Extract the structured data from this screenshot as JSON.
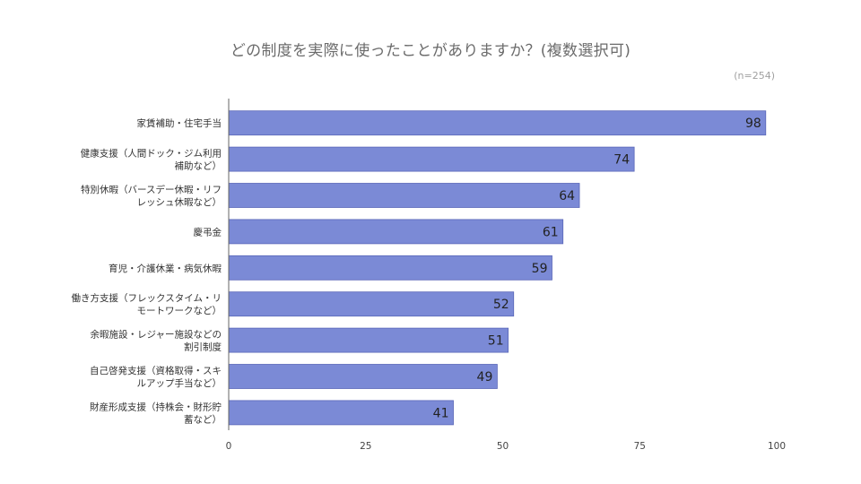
{
  "chart_data": {
    "type": "bar",
    "orientation": "horizontal",
    "title": "どの制度を実際に使ったことがありますか？(複数選択可)",
    "note": "(n=254)",
    "categories": [
      [
        "家賃補助・住宅手当"
      ],
      [
        "健康支援（人間ドック・ジム利用",
        "補助など）"
      ],
      [
        "特別休暇（バースデー休暇・リフ",
        "レッシュ休暇など）"
      ],
      [
        "慶弔金"
      ],
      [
        "育児・介護休業・病気休暇"
      ],
      [
        "働き方支援（フレックスタイム・リ",
        "モートワークなど）"
      ],
      [
        "余暇施設・レジャー施設などの",
        "割引制度"
      ],
      [
        "自己啓発支援（資格取得・スキ",
        "ルアップ手当など）"
      ],
      [
        "財産形成支援（持株会・財形貯",
        "蓄など）"
      ]
    ],
    "values": [
      98,
      74,
      64,
      61,
      59,
      52,
      51,
      49,
      41
    ],
    "xlim": [
      0,
      100
    ],
    "xticks": [
      "0",
      "25",
      "50",
      "75",
      "100"
    ],
    "grid": false,
    "bar_color": "#7b8ad6",
    "bar_border_color": "#5a67b8"
  }
}
